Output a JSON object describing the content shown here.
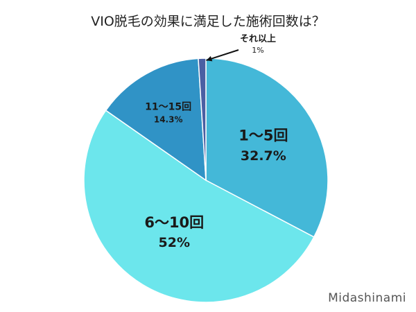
{
  "chart_data": {
    "type": "pie",
    "title": "VIO脱毛の効果に満足した施術回数は？",
    "slices": [
      {
        "label": "1〜5回",
        "value": 32.7,
        "value_label": "32.7%",
        "color": "#44b8d8"
      },
      {
        "label": "6〜10回",
        "value": 52,
        "value_label": "52%",
        "color": "#6ce6ec"
      },
      {
        "label": "11〜15回",
        "value": 14.3,
        "value_label": "14.3%",
        "color": "#3093c6"
      },
      {
        "label": "それ以上",
        "value": 1,
        "value_label": "1%",
        "color": "#4a5fa3"
      }
    ],
    "start": "top, clockwise",
    "legend": "none"
  },
  "branding": {
    "text": "Midashinami"
  }
}
